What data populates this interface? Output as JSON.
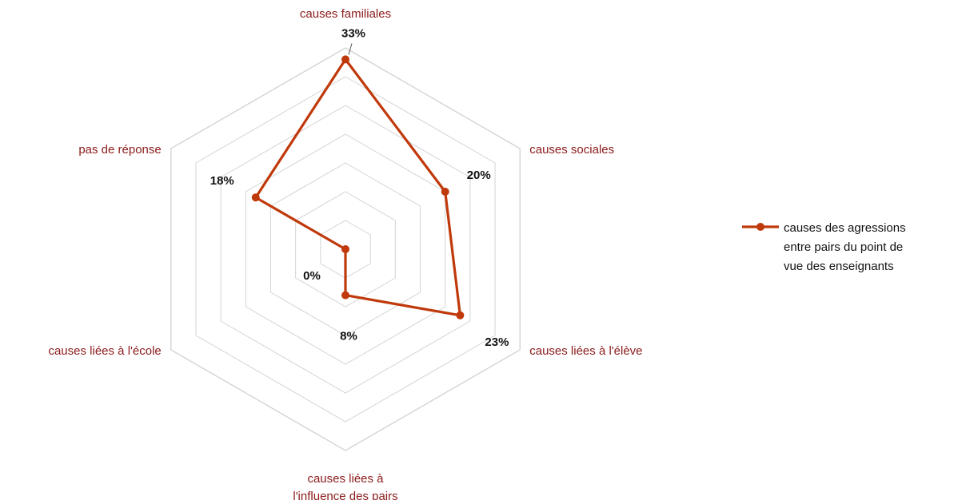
{
  "chart_data": {
    "type": "radar",
    "categories": [
      "causes familiales",
      "causes sociales",
      "causes liées à l'élève",
      "causes liées à\nl'influence des pairs",
      "causes liées à l'école",
      "pas de réponse"
    ],
    "series": [
      {
        "name": "causes des agressions\nentre pairs du point de\nvue des enseignants",
        "values": [
          33,
          20,
          23,
          8,
          0,
          18
        ],
        "labels": [
          "33%",
          "20%",
          "23%",
          "8%",
          "0%",
          "18%"
        ],
        "color": "#C0390B"
      }
    ],
    "rlim": [
      0,
      35
    ],
    "grid": true,
    "legend": "right",
    "colors": {
      "category_text": "#8B1A1A",
      "grid": "#d4d4d4",
      "series": "#C0390B"
    }
  }
}
